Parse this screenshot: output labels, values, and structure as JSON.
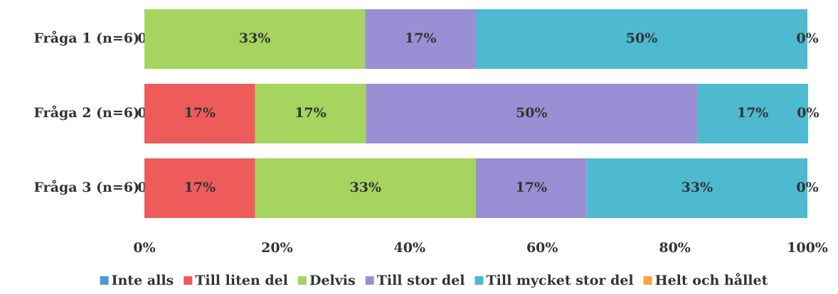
{
  "chart_data": {
    "type": "stacked-bar-horizontal",
    "categories": [
      "Fråga 1 (n=6)",
      "Fråga 2 (n=6)",
      "Fråga 3 (n=6)"
    ],
    "series": [
      {
        "name": "Inte alls",
        "color": "#4b9ad4",
        "values": [
          0,
          0,
          0
        ],
        "value_labels": [
          "0%",
          "0%",
          "0%"
        ]
      },
      {
        "name": "Till liten del",
        "color": "#ee5b5b",
        "values": [
          0,
          16.7,
          16.7
        ],
        "value_labels": [
          null,
          "17%",
          "17%"
        ]
      },
      {
        "name": "Delvis",
        "color": "#a5d45f",
        "values": [
          33.3,
          16.7,
          33.3
        ],
        "value_labels": [
          "33%",
          "17%",
          "33%"
        ]
      },
      {
        "name": "Till stor del",
        "color": "#9a8fd4",
        "values": [
          16.7,
          50,
          16.7
        ],
        "value_labels": [
          "17%",
          "50%",
          "17%"
        ]
      },
      {
        "name": "Till mycket stor del",
        "color": "#4dbad0",
        "values": [
          50,
          16.7,
          33.3
        ],
        "value_labels": [
          "50%",
          "17%",
          "33%"
        ]
      },
      {
        "name": "Helt och hållet",
        "color": "#f4a640",
        "values": [
          0,
          0,
          0
        ],
        "value_labels": [
          "0%",
          "0%",
          "0%"
        ]
      }
    ],
    "xlim": [
      0,
      100
    ],
    "xticks": [
      {
        "value": 0,
        "label": "0%"
      },
      {
        "value": 20,
        "label": "20%"
      },
      {
        "value": 40,
        "label": "40%"
      },
      {
        "value": 60,
        "label": "60%"
      },
      {
        "value": 80,
        "label": "80%"
      },
      {
        "value": 100,
        "label": "100%"
      }
    ],
    "legend": "bottom"
  }
}
